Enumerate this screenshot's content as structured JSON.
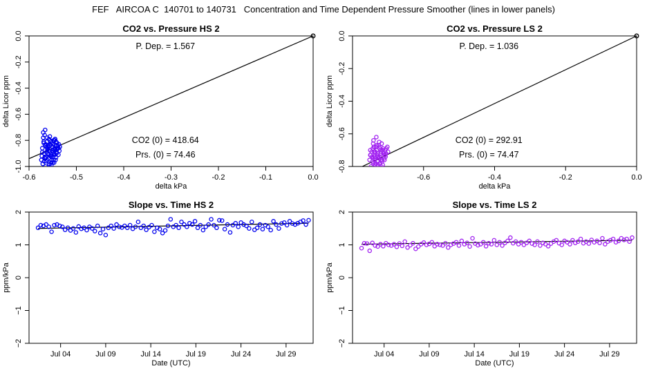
{
  "figure_title": "FEF   AIRCOA C  140701 to 140731   Concentration and Time Dependent Pressure Smoother (lines in lower panels)",
  "colors": {
    "hs_points": "#0000ee",
    "ls_points": "#a020f0",
    "line": "#000000"
  },
  "chart_data": [
    {
      "id": "co2-vs-pressure-hs2",
      "type": "scatter",
      "title": "CO2 vs. Pressure HS 2",
      "xlabel": "delta kPa",
      "ylabel": "delta Licor ppm",
      "xlim": [
        -0.6,
        0.0
      ],
      "ylim": [
        -1.0,
        0.0
      ],
      "xticks": [
        -0.6,
        -0.5,
        -0.4,
        -0.3,
        -0.2,
        -0.1,
        0.0
      ],
      "xtick_labels": [
        "-0.6",
        "-0.5",
        "-0.4",
        "-0.3",
        "-0.2",
        "-0.1",
        "0.0"
      ],
      "yticks": [
        -1.0,
        -0.8,
        -0.6,
        -0.4,
        -0.2,
        0.0
      ],
      "ytick_labels": [
        "-1.0",
        "-0.8",
        "-0.6",
        "-0.4",
        "-0.2",
        "0.0"
      ],
      "color": "#0000ee",
      "fit_line": {
        "slope": 1.567,
        "intercept": 0
      },
      "origin_point": [
        0,
        0
      ],
      "annotations": {
        "p_dep": "P. Dep. =  1.567",
        "co2_zero": "CO2 (0) =  418.64",
        "prs_zero": "Prs. (0) =  74.46"
      },
      "x": [
        -0.572,
        -0.568,
        -0.565,
        -0.562,
        -0.559,
        -0.556,
        -0.553,
        -0.55,
        -0.547,
        -0.544,
        -0.541,
        -0.538,
        -0.535,
        -0.57,
        -0.566,
        -0.563,
        -0.56,
        -0.557,
        -0.554,
        -0.551,
        -0.548,
        -0.545,
        -0.542,
        -0.539,
        -0.536,
        -0.573,
        -0.569,
        -0.564,
        -0.561,
        -0.558,
        -0.555,
        -0.552,
        -0.549,
        -0.546,
        -0.543,
        -0.54,
        -0.567,
        -0.562,
        -0.556,
        -0.55,
        -0.545,
        -0.571,
        -0.565,
        -0.559,
        -0.553,
        -0.547,
        -0.541,
        -0.575,
        -0.566,
        -0.558,
        -0.551,
        -0.544,
        -0.537,
        -0.57,
        -0.563,
        -0.555,
        -0.548,
        -0.542,
        -0.568,
        -0.56,
        -0.552,
        -0.546,
        -0.572,
        -0.564,
        -0.557,
        -0.549,
        -0.543,
        -0.538,
        -0.566,
        -0.561,
        -0.554,
        -0.548,
        -0.542,
        -0.574,
        -0.569,
        -0.559,
        -0.55,
        -0.545,
        -0.562,
        -0.556,
        -0.553,
        -0.567,
        -0.558,
        -0.547
      ],
      "y": [
        -0.86,
        -0.9,
        -0.83,
        -0.95,
        -0.88,
        -0.8,
        -0.92,
        -0.85,
        -0.97,
        -0.87,
        -0.82,
        -0.91,
        -0.85,
        -0.78,
        -0.94,
        -0.89,
        -0.84,
        -0.99,
        -0.81,
        -0.93,
        -0.87,
        -0.79,
        -0.9,
        -0.84,
        -0.88,
        -0.92,
        -0.82,
        -0.96,
        -0.86,
        -0.91,
        -0.83,
        -0.95,
        -0.89,
        -0.8,
        -0.93,
        -0.86,
        -0.76,
        -0.81,
        -0.77,
        -0.83,
        -0.79,
        -0.98,
        -1.0,
        -0.94,
        -0.97,
        -0.9,
        -0.87,
        -1.05,
        -0.84,
        -0.79,
        -0.88,
        -0.95,
        -0.83,
        -0.74,
        -0.85,
        -0.92,
        -0.8,
        -0.89,
        -0.96,
        -0.9,
        -0.82,
        -0.86,
        -0.89,
        -0.93,
        -0.98,
        -0.88,
        -0.81,
        -0.86,
        -0.72,
        -0.87,
        -0.91,
        -0.95,
        -0.84,
        -0.95,
        -0.81,
        -1.02,
        -0.97,
        -0.91,
        -0.78,
        -0.84,
        -0.99,
        -0.93,
        -0.85,
        -0.8
      ]
    },
    {
      "id": "co2-vs-pressure-ls2",
      "type": "scatter",
      "title": "CO2 vs. Pressure LS 2",
      "xlabel": "delta kPa",
      "ylabel": "delta Licor ppm",
      "xlim": [
        -0.8,
        0.0
      ],
      "ylim": [
        -0.8,
        0.0
      ],
      "xticks": [
        -0.6,
        -0.4,
        -0.2,
        0.0
      ],
      "xtick_labels": [
        "-0.6",
        "-0.4",
        "-0.2",
        "0.0"
      ],
      "yticks": [
        -0.8,
        -0.6,
        -0.4,
        -0.2,
        0.0
      ],
      "ytick_labels": [
        "-0.8",
        "-0.6",
        "-0.4",
        "-0.2",
        "0.0"
      ],
      "color": "#a020f0",
      "fit_line": {
        "slope": 1.036,
        "intercept": 0
      },
      "origin_point": [
        0,
        0
      ],
      "annotations": {
        "p_dep": "P. Dep. =  1.036",
        "co2_zero": "CO2 (0) =  292.91",
        "prs_zero": "Prs. (0) =  74.47"
      },
      "x": [
        -0.75,
        -0.745,
        -0.74,
        -0.735,
        -0.73,
        -0.725,
        -0.72,
        -0.715,
        -0.71,
        -0.705,
        -0.7,
        -0.748,
        -0.742,
        -0.737,
        -0.732,
        -0.727,
        -0.722,
        -0.717,
        -0.712,
        -0.707,
        -0.702,
        -0.752,
        -0.746,
        -0.741,
        -0.736,
        -0.731,
        -0.726,
        -0.721,
        -0.716,
        -0.711,
        -0.706,
        -0.743,
        -0.738,
        -0.733,
        -0.728,
        -0.723,
        -0.718,
        -0.713,
        -0.708,
        -0.75,
        -0.744,
        -0.739,
        -0.734,
        -0.729,
        -0.724,
        -0.719,
        -0.714,
        -0.709,
        -0.747,
        -0.741,
        -0.736,
        -0.73,
        -0.725,
        -0.72,
        -0.715,
        -0.71,
        -0.738,
        -0.732,
        -0.726,
        -0.72,
        -0.744,
        -0.736,
        -0.728,
        -0.741,
        -0.733,
        -0.749,
        -0.742,
        -0.731,
        -0.724,
        -0.717,
        -0.745,
        -0.739,
        -0.729,
        -0.72
      ],
      "y": [
        -0.7,
        -0.74,
        -0.68,
        -0.78,
        -0.72,
        -0.65,
        -0.76,
        -0.7,
        -0.73,
        -0.69,
        -0.71,
        -0.8,
        -0.66,
        -0.75,
        -0.7,
        -0.82,
        -0.68,
        -0.77,
        -0.72,
        -0.74,
        -0.68,
        -0.76,
        -0.71,
        -0.64,
        -0.79,
        -0.73,
        -0.67,
        -0.81,
        -0.7,
        -0.75,
        -0.72,
        -0.69,
        -0.76,
        -0.62,
        -0.74,
        -0.78,
        -0.66,
        -0.72,
        -0.7,
        -0.73,
        -0.84,
        -0.71,
        -0.68,
        -0.77,
        -0.74,
        -0.8,
        -0.69,
        -0.73,
        -0.82,
        -0.78,
        -0.72,
        -0.86,
        -0.75,
        -0.7,
        -0.79,
        -0.76,
        -0.74,
        -0.67,
        -0.83,
        -0.72,
        -0.77,
        -0.71,
        -0.79,
        -0.84,
        -0.86,
        -0.73,
        -0.75,
        -0.8,
        -0.69,
        -0.76,
        -0.82,
        -0.68,
        -0.74,
        -0.71
      ]
    },
    {
      "id": "slope-vs-time-hs2",
      "type": "scatter",
      "title": "Slope vs. Time HS 2",
      "xlabel": "Date (UTC)",
      "ylabel": "ppm/kPa",
      "xlim": [
        0.5,
        32
      ],
      "ylim": [
        -2,
        2
      ],
      "xticks": [
        4,
        9,
        14,
        19,
        24,
        29
      ],
      "xtick_labels": [
        "Jul 04",
        "Jul 09",
        "Jul 14",
        "Jul 19",
        "Jul 24",
        "Jul 29"
      ],
      "yticks": [
        -2,
        -1,
        0,
        1,
        2
      ],
      "ytick_labels": [
        "−2",
        "−1",
        "0",
        "1",
        "2"
      ],
      "color": "#0000ee",
      "fit_line": {
        "x": [
          1.5,
          31.5
        ],
        "y": [
          1.5,
          1.66
        ]
      },
      "x": [
        1.5,
        1.8,
        2.1,
        2.4,
        2.7,
        3.0,
        3.3,
        3.6,
        3.9,
        4.2,
        4.5,
        4.8,
        5.1,
        5.4,
        5.7,
        6.0,
        6.3,
        6.6,
        6.9,
        7.2,
        7.5,
        7.8,
        8.1,
        8.4,
        8.7,
        9.0,
        9.3,
        9.6,
        9.9,
        10.2,
        10.5,
        10.8,
        11.1,
        11.4,
        11.7,
        12.0,
        12.3,
        12.6,
        12.9,
        13.2,
        13.5,
        13.8,
        14.1,
        14.4,
        14.7,
        15.0,
        15.3,
        15.6,
        15.9,
        16.2,
        16.5,
        16.8,
        17.1,
        17.4,
        17.7,
        18.0,
        18.3,
        18.6,
        18.9,
        19.2,
        19.5,
        19.8,
        20.1,
        20.4,
        20.7,
        21.0,
        21.3,
        21.6,
        21.9,
        22.2,
        22.5,
        22.8,
        23.1,
        23.4,
        23.7,
        24.0,
        24.3,
        24.6,
        24.9,
        25.2,
        25.5,
        25.8,
        26.1,
        26.4,
        26.7,
        27.0,
        27.3,
        27.6,
        27.9,
        28.2,
        28.5,
        28.8,
        29.1,
        29.4,
        29.7,
        30.0,
        30.3,
        30.6,
        30.9,
        31.2,
        31.5
      ],
      "y": [
        1.52,
        1.6,
        1.58,
        1.62,
        1.55,
        1.4,
        1.6,
        1.62,
        1.58,
        1.55,
        1.46,
        1.52,
        1.44,
        1.5,
        1.38,
        1.56,
        1.49,
        1.52,
        1.45,
        1.55,
        1.5,
        1.42,
        1.58,
        1.36,
        1.48,
        1.3,
        1.52,
        1.58,
        1.5,
        1.62,
        1.55,
        1.53,
        1.58,
        1.52,
        1.6,
        1.49,
        1.55,
        1.7,
        1.52,
        1.58,
        1.46,
        1.54,
        1.6,
        1.4,
        1.52,
        1.48,
        1.36,
        1.44,
        1.58,
        1.78,
        1.55,
        1.6,
        1.52,
        1.7,
        1.62,
        1.55,
        1.66,
        1.62,
        1.72,
        1.52,
        1.6,
        1.45,
        1.55,
        1.62,
        1.78,
        1.6,
        1.52,
        1.75,
        1.74,
        1.48,
        1.62,
        1.38,
        1.6,
        1.66,
        1.55,
        1.68,
        1.62,
        1.58,
        1.5,
        1.7,
        1.46,
        1.52,
        1.62,
        1.48,
        1.6,
        1.55,
        1.45,
        1.72,
        1.62,
        1.5,
        1.65,
        1.68,
        1.6,
        1.72,
        1.65,
        1.62,
        1.66,
        1.7,
        1.74,
        1.62,
        1.75
      ]
    },
    {
      "id": "slope-vs-time-ls2",
      "type": "scatter",
      "title": "Slope vs. Time LS 2",
      "xlabel": "Date (UTC)",
      "ylabel": "ppm/kPa",
      "xlim": [
        0.5,
        32
      ],
      "ylim": [
        -2,
        2
      ],
      "xticks": [
        4,
        9,
        14,
        19,
        24,
        29
      ],
      "xtick_labels": [
        "Jul 04",
        "Jul 09",
        "Jul 14",
        "Jul 19",
        "Jul 24",
        "Jul 29"
      ],
      "yticks": [
        -2,
        -1,
        0,
        1,
        2
      ],
      "ytick_labels": [
        "−2",
        "−1",
        "0",
        "1",
        "2"
      ],
      "color": "#a020f0",
      "fit_line": {
        "x": [
          1.5,
          31.5
        ],
        "y": [
          1.02,
          1.14
        ]
      },
      "x": [
        1.5,
        1.8,
        2.1,
        2.4,
        2.7,
        3.0,
        3.3,
        3.6,
        3.9,
        4.2,
        4.5,
        4.8,
        5.1,
        5.4,
        5.7,
        6.0,
        6.3,
        6.6,
        6.9,
        7.2,
        7.5,
        7.8,
        8.1,
        8.4,
        8.7,
        9.0,
        9.3,
        9.6,
        9.9,
        10.2,
        10.5,
        10.8,
        11.1,
        11.4,
        11.7,
        12.0,
        12.3,
        12.6,
        12.9,
        13.2,
        13.5,
        13.8,
        14.1,
        14.4,
        14.7,
        15.0,
        15.3,
        15.6,
        15.9,
        16.2,
        16.5,
        16.8,
        17.1,
        17.4,
        17.7,
        18.0,
        18.3,
        18.6,
        18.9,
        19.2,
        19.5,
        19.8,
        20.1,
        20.4,
        20.7,
        21.0,
        21.3,
        21.6,
        21.9,
        22.2,
        22.5,
        22.8,
        23.1,
        23.4,
        23.7,
        24.0,
        24.3,
        24.6,
        24.9,
        25.2,
        25.5,
        25.8,
        26.1,
        26.4,
        26.7,
        27.0,
        27.3,
        27.6,
        27.9,
        28.2,
        28.5,
        28.8,
        29.1,
        29.4,
        29.7,
        30.0,
        30.3,
        30.6,
        30.9,
        31.2,
        31.5
      ],
      "y": [
        0.9,
        1.05,
        1.04,
        0.82,
        1.06,
        0.98,
        0.95,
        1.02,
        0.96,
        1.05,
        1.0,
        0.98,
        1.02,
        0.94,
        1.04,
        0.97,
        1.1,
        0.92,
        0.99,
        1.05,
        0.88,
        0.95,
        1.02,
        1.07,
        1.0,
        1.03,
        1.08,
        0.96,
        1.02,
        1.0,
        0.98,
        1.05,
        0.92,
        1.0,
        1.04,
        1.08,
        0.98,
        1.12,
        1.02,
        1.06,
        0.95,
        1.2,
        1.04,
        0.99,
        1.02,
        1.08,
        0.96,
        1.05,
        1.02,
        1.14,
        1.0,
        1.08,
        0.98,
        1.06,
        1.12,
        1.22,
        1.05,
        1.1,
        1.02,
        1.08,
        1.0,
        1.06,
        1.12,
        1.04,
        1.0,
        1.1,
        0.98,
        1.06,
        1.02,
        0.96,
        1.04,
        1.1,
        1.14,
        1.05,
        1.0,
        1.12,
        1.08,
        1.02,
        1.14,
        1.06,
        1.1,
        1.18,
        1.05,
        1.1,
        1.04,
        1.15,
        1.08,
        1.12,
        1.06,
        1.2,
        1.02,
        1.1,
        1.14,
        1.18,
        1.08,
        1.12,
        1.2,
        1.15,
        1.18,
        1.1,
        1.22
      ]
    }
  ]
}
